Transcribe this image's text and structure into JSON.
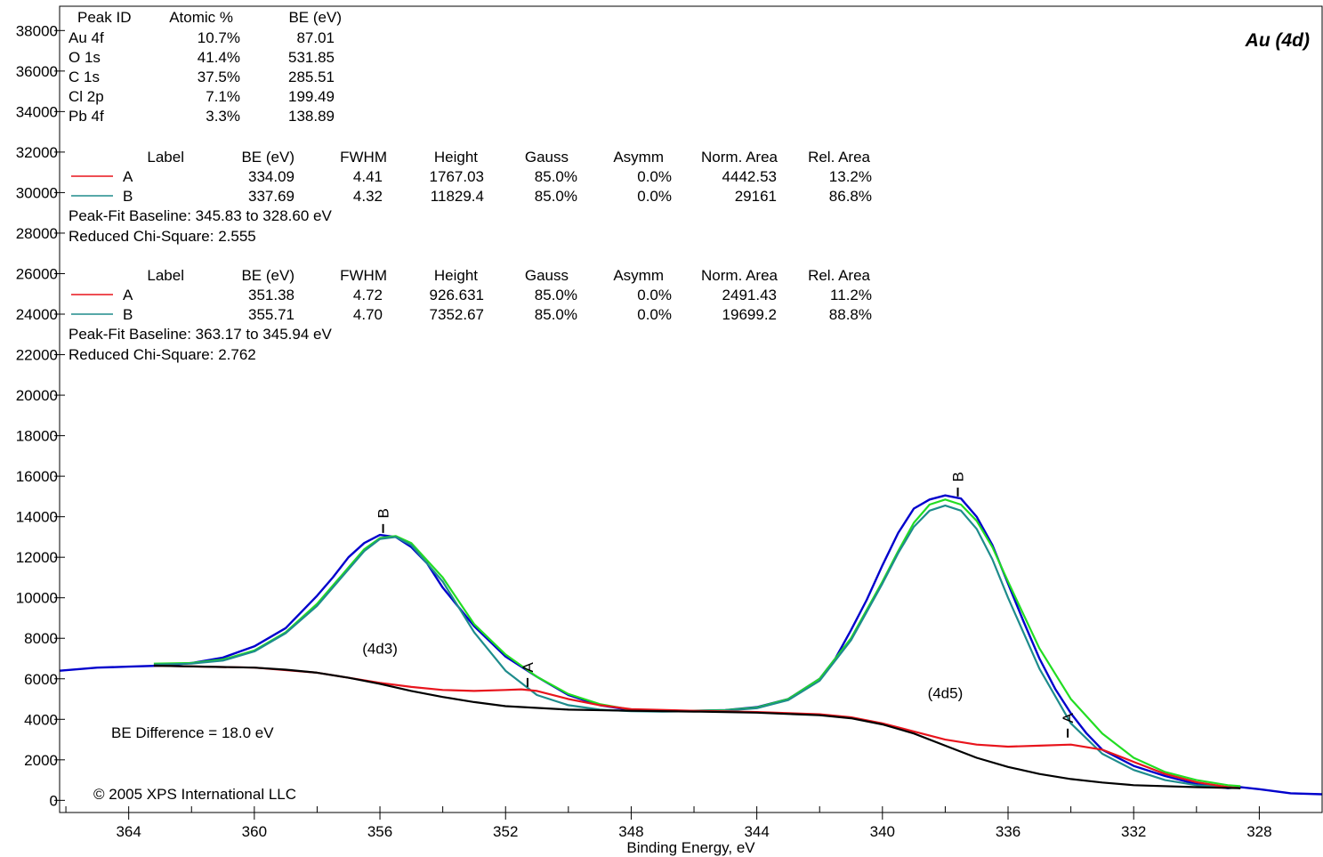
{
  "chart_data": {
    "type": "line",
    "title": "Au (4d)",
    "xlabel": "Binding Energy, eV",
    "ylabel": "",
    "xlim": [
      366.2,
      326.0
    ],
    "ylim": [
      -600,
      39200
    ],
    "x_reversed": true,
    "x_ticks": [
      364,
      360,
      356,
      352,
      348,
      344,
      340,
      336,
      332,
      328
    ],
    "y_ticks": [
      0,
      2000,
      4000,
      6000,
      8000,
      10000,
      12000,
      14000,
      16000,
      18000,
      20000,
      22000,
      24000,
      26000,
      28000,
      30000,
      32000,
      34000,
      36000,
      38000
    ],
    "grid": false,
    "copyright": "© 2005 XPS International LLC",
    "be_difference": "BE  Difference  =  18.0  eV",
    "peak_annotations": [
      {
        "text": "(4d3)",
        "x": 356.0,
        "y": 7250
      },
      {
        "text": "(4d5)",
        "x": 338.0,
        "y": 5050
      }
    ],
    "peak_id_table": {
      "headers": [
        "Peak ID",
        "Atomic %",
        "BE (eV)"
      ],
      "rows": [
        [
          "Au 4f",
          "10.7%",
          "87.01"
        ],
        [
          "O 1s",
          "41.4%",
          "531.85"
        ],
        [
          "C 1s",
          "37.5%",
          "285.51"
        ],
        [
          "Cl 2p",
          "7.1%",
          "199.49"
        ],
        [
          "Pb 4f",
          "3.3%",
          "138.89"
        ]
      ]
    },
    "fit_tables": [
      {
        "headers": [
          "Label",
          "BE (eV)",
          "FWHM",
          "Height",
          "Gauss",
          "Asymm",
          "Norm. Area",
          "Rel. Area"
        ],
        "rows": [
          {
            "label": "A",
            "color": "#e8141c",
            "values": [
              "334.09",
              "4.41",
              "1767.03",
              "85.0%",
              "0.0%",
              "4442.53",
              "13.2%"
            ]
          },
          {
            "label": "B",
            "color": "#1e8c8c",
            "values": [
              "337.69",
              "4.32",
              "11829.4",
              "85.0%",
              "0.0%",
              "29161",
              "86.8%"
            ]
          }
        ],
        "baseline": "Peak-Fit Baseline:  345.83 to  328.60 eV",
        "chi": "Reduced Chi-Square: 2.555"
      },
      {
        "headers": [
          "Label",
          "BE (eV)",
          "FWHM",
          "Height",
          "Gauss",
          "Asymm",
          "Norm. Area",
          "Rel. Area"
        ],
        "rows": [
          {
            "label": "A",
            "color": "#e8141c",
            "values": [
              "351.38",
              "4.72",
              "926.631",
              "85.0%",
              "0.0%",
              "2491.43",
              "11.2%"
            ]
          },
          {
            "label": "B",
            "color": "#1e8c8c",
            "values": [
              "355.71",
              "4.70",
              "7352.67",
              "85.0%",
              "0.0%",
              "19699.2",
              "88.8%"
            ]
          }
        ],
        "baseline": "Peak-Fit Baseline:  363.17 to  345.94 eV",
        "chi": "Reduced Chi-Square: 2.762"
      }
    ],
    "markers": [
      {
        "label": "B",
        "x": 355.9,
        "y": 13200
      },
      {
        "label": "A",
        "x": 351.3,
        "y": 5600
      },
      {
        "label": "B",
        "x": 337.6,
        "y": 15000
      },
      {
        "label": "A",
        "x": 334.1,
        "y": 3100
      }
    ],
    "series": [
      {
        "color": "#0000cc",
        "x": [
          366.2,
          365,
          364,
          363,
          362,
          361,
          360,
          359,
          358,
          357.5,
          357,
          356.5,
          356,
          355.5,
          355,
          354.5,
          354,
          353,
          352,
          351,
          350,
          349,
          348,
          347,
          346,
          345,
          344,
          343,
          342,
          341.5,
          341,
          340.5,
          340,
          339.5,
          339,
          338.5,
          338,
          337.5,
          337,
          336.5,
          336,
          335.5,
          335,
          334.5,
          334,
          333.5,
          333,
          332,
          331,
          330,
          329,
          328.6,
          328,
          327,
          326
        ],
        "y": [
          6400,
          6550,
          6600,
          6650,
          6780,
          7050,
          7600,
          8500,
          10100,
          11000,
          12000,
          12700,
          13100,
          13000,
          12500,
          11700,
          10500,
          8600,
          7100,
          6100,
          5200,
          4700,
          4450,
          4400,
          4420,
          4450,
          4600,
          5000,
          6000,
          7000,
          8400,
          9900,
          11600,
          13200,
          14400,
          14850,
          15050,
          14900,
          14000,
          12600,
          10700,
          8800,
          7000,
          5500,
          4300,
          3300,
          2500,
          1700,
          1200,
          800,
          600,
          650,
          550,
          350,
          300
        ]
      },
      {
        "color": "#22dd22",
        "x": [
          363.2,
          362,
          361,
          360,
          359,
          358,
          357,
          356.5,
          356,
          355.5,
          355,
          354,
          353,
          352,
          351,
          350,
          349,
          348,
          347,
          346,
          345,
          344,
          343,
          342,
          341,
          340,
          339.5,
          339,
          338.5,
          338,
          337.5,
          337,
          336.5,
          336,
          335,
          334,
          333,
          332,
          331,
          330,
          329,
          328.6
        ],
        "y": [
          6750,
          6780,
          6950,
          7400,
          8300,
          9700,
          11500,
          12400,
          12950,
          13050,
          12700,
          11000,
          8700,
          7200,
          6100,
          5250,
          4750,
          4480,
          4420,
          4420,
          4450,
          4580,
          5000,
          6000,
          8000,
          10800,
          12300,
          13700,
          14600,
          14850,
          14600,
          13800,
          12500,
          10800,
          7500,
          5000,
          3300,
          2100,
          1400,
          1000,
          750,
          700
        ]
      },
      {
        "color": "#1e8c8c",
        "x": [
          363.2,
          362,
          361,
          360,
          359,
          358,
          357,
          356.5,
          356,
          355.5,
          355,
          354,
          353,
          352,
          351,
          350,
          349,
          348,
          347,
          346,
          345,
          344,
          343,
          342,
          341,
          340,
          339.5,
          339,
          338.5,
          338,
          337.5,
          337,
          336.5,
          336,
          335,
          334,
          333,
          332,
          331,
          330,
          329,
          328.6
        ],
        "y": [
          6700,
          6750,
          6900,
          7350,
          8250,
          9600,
          11400,
          12300,
          12900,
          13000,
          12600,
          10800,
          8300,
          6400,
          5200,
          4700,
          4480,
          4400,
          4380,
          4400,
          4430,
          4550,
          4950,
          5900,
          7900,
          10700,
          12200,
          13500,
          14300,
          14550,
          14300,
          13400,
          11900,
          10000,
          6500,
          3800,
          2300,
          1500,
          1000,
          750,
          650,
          600
        ]
      },
      {
        "color": "#e8141c",
        "x": [
          363.2,
          360,
          358,
          357,
          356,
          355,
          354,
          353,
          352,
          351.5,
          351,
          350,
          349,
          348,
          346,
          344,
          342,
          341,
          340,
          339,
          338,
          337,
          336,
          335,
          334,
          333,
          332,
          331,
          330,
          329,
          328.6
        ],
        "y": [
          6650,
          6550,
          6300,
          6050,
          5800,
          5600,
          5450,
          5400,
          5450,
          5480,
          5400,
          5000,
          4700,
          4500,
          4420,
          4360,
          4250,
          4100,
          3800,
          3400,
          3000,
          2750,
          2650,
          2700,
          2750,
          2500,
          1900,
          1300,
          900,
          650,
          600
        ]
      },
      {
        "color": "#000000",
        "x": [
          363.2,
          360,
          359,
          358,
          357,
          356,
          355,
          354,
          353,
          352,
          350,
          348,
          346,
          345.8,
          344,
          342,
          341,
          340,
          339,
          338,
          337,
          336,
          335,
          334,
          333,
          332,
          330,
          328.6
        ],
        "y": [
          6650,
          6550,
          6450,
          6300,
          6050,
          5750,
          5400,
          5100,
          4850,
          4650,
          4480,
          4420,
          4380,
          4380,
          4330,
          4200,
          4050,
          3750,
          3300,
          2700,
          2100,
          1650,
          1300,
          1050,
          880,
          750,
          650,
          600
        ]
      }
    ]
  }
}
